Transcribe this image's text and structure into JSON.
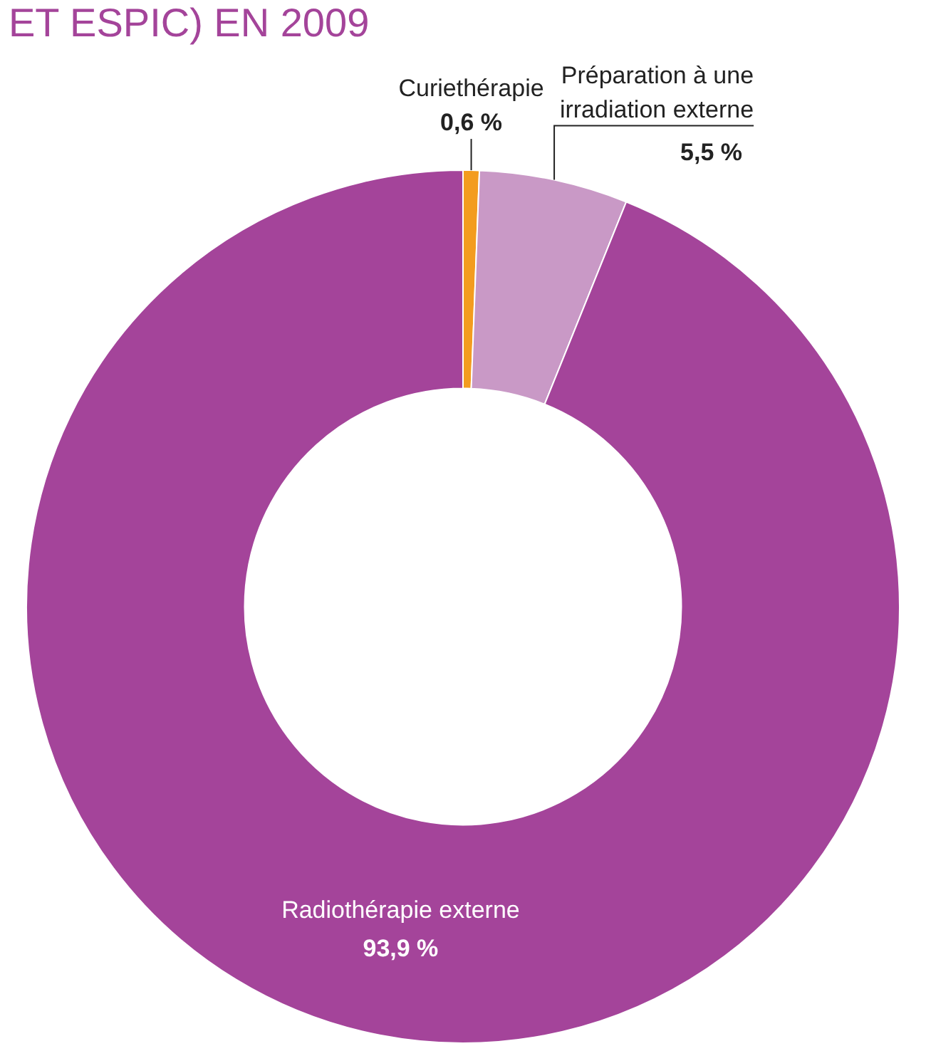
{
  "chart_data": {
    "type": "donut",
    "title": "ET ESPIC) EN 2009",
    "categories": [
      "Curiethérapie",
      "Préparation à une irradiation externe",
      "Radiothérapie externe"
    ],
    "values": [
      0.6,
      5.5,
      93.9
    ],
    "colors": [
      "#f39c1f",
      "#c999c6",
      "#a4449a"
    ],
    "value_labels": [
      "0,6 %",
      "5,5 %",
      "93,9 %"
    ],
    "legend": false
  }
}
